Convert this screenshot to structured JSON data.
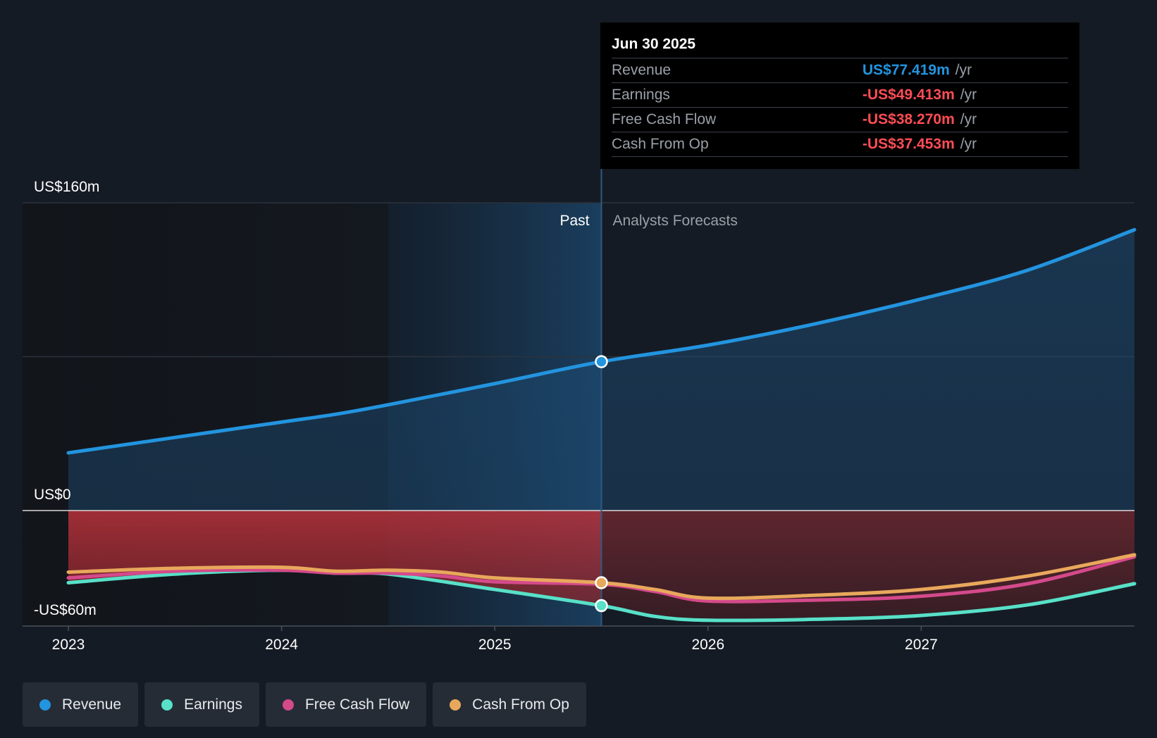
{
  "chart_data": {
    "type": "area",
    "currency_prefix": "US$",
    "y_axis": {
      "min": -60,
      "max": 160,
      "unit": "m",
      "labels": [
        {
          "value": 160,
          "text": "US$160m"
        },
        {
          "value": 0,
          "text": "US$0"
        },
        {
          "value": -60,
          "text": "-US$60m"
        }
      ]
    },
    "x_axis": {
      "min": 2023.0,
      "max": 2028.0,
      "ticks": [
        {
          "value": 2023,
          "text": "2023"
        },
        {
          "value": 2024,
          "text": "2024"
        },
        {
          "value": 2025,
          "text": "2025"
        },
        {
          "value": 2026,
          "text": "2026"
        },
        {
          "value": 2027,
          "text": "2027"
        }
      ]
    },
    "divider": {
      "x": 2025.5,
      "past_label": "Past",
      "forecast_label": "Analysts Forecasts"
    },
    "highlight_start": 2024.5,
    "series": [
      {
        "name": "Revenue",
        "color": "#2394df",
        "points": [
          [
            2023.0,
            30
          ],
          [
            2023.5,
            38
          ],
          [
            2024.0,
            46
          ],
          [
            2024.25,
            50
          ],
          [
            2024.5,
            55
          ],
          [
            2025.0,
            66
          ],
          [
            2025.5,
            77.4
          ],
          [
            2026.0,
            86
          ],
          [
            2026.5,
            97
          ],
          [
            2027.0,
            110
          ],
          [
            2027.5,
            125
          ],
          [
            2028.0,
            146
          ]
        ]
      },
      {
        "name": "Earnings",
        "color": "#58e0c8",
        "points": [
          [
            2023.0,
            -37.5
          ],
          [
            2023.5,
            -33
          ],
          [
            2024.0,
            -31
          ],
          [
            2024.25,
            -32.5
          ],
          [
            2024.5,
            -33
          ],
          [
            2025.0,
            -41
          ],
          [
            2025.5,
            -49.4
          ],
          [
            2025.75,
            -55
          ],
          [
            2026.0,
            -57
          ],
          [
            2026.5,
            -56.5
          ],
          [
            2027.0,
            -54.5
          ],
          [
            2027.5,
            -49
          ],
          [
            2028.0,
            -38
          ]
        ]
      },
      {
        "name": "Free Cash Flow",
        "color": "#d44a8b",
        "points": [
          [
            2023.0,
            -35
          ],
          [
            2023.5,
            -31.5
          ],
          [
            2024.0,
            -31
          ],
          [
            2024.25,
            -32.5
          ],
          [
            2024.5,
            -32.5
          ],
          [
            2024.75,
            -34
          ],
          [
            2025.0,
            -37
          ],
          [
            2025.5,
            -38.3
          ],
          [
            2025.75,
            -42
          ],
          [
            2026.0,
            -47
          ],
          [
            2026.5,
            -46.5
          ],
          [
            2027.0,
            -44.5
          ],
          [
            2027.5,
            -38
          ],
          [
            2028.0,
            -24
          ]
        ]
      },
      {
        "name": "Cash From Op",
        "color": "#e8a85c",
        "points": [
          [
            2023.0,
            -32
          ],
          [
            2023.5,
            -30
          ],
          [
            2024.0,
            -29.5
          ],
          [
            2024.25,
            -31.5
          ],
          [
            2024.5,
            -31
          ],
          [
            2024.75,
            -32
          ],
          [
            2025.0,
            -35
          ],
          [
            2025.5,
            -37.5
          ],
          [
            2025.75,
            -41
          ],
          [
            2026.0,
            -45.5
          ],
          [
            2026.5,
            -44
          ],
          [
            2027.0,
            -41
          ],
          [
            2027.5,
            -34
          ],
          [
            2028.0,
            -23
          ]
        ]
      }
    ],
    "markers": [
      {
        "series": "Revenue",
        "x": 2025.5,
        "y": 77.4
      },
      {
        "series": "Cash From Op",
        "x": 2025.5,
        "y": -37.5
      },
      {
        "series": "Earnings",
        "x": 2025.5,
        "y": -49.4
      }
    ]
  },
  "tooltip": {
    "date": "Jun 30 2025",
    "rows": [
      {
        "label": "Revenue",
        "value": "US$77.419m",
        "unit": "/yr",
        "color": "#2394df"
      },
      {
        "label": "Earnings",
        "value": "-US$49.413m",
        "unit": "/yr",
        "color": "#ff4d55"
      },
      {
        "label": "Free Cash Flow",
        "value": "-US$38.270m",
        "unit": "/yr",
        "color": "#ff4d55"
      },
      {
        "label": "Cash From Op",
        "value": "-US$37.453m",
        "unit": "/yr",
        "color": "#ff4d55"
      }
    ]
  },
  "legend": [
    {
      "label": "Revenue",
      "color": "#2394df"
    },
    {
      "label": "Earnings",
      "color": "#58e0c8"
    },
    {
      "label": "Free Cash Flow",
      "color": "#d44a8b"
    },
    {
      "label": "Cash From Op",
      "color": "#e8a85c"
    }
  ]
}
